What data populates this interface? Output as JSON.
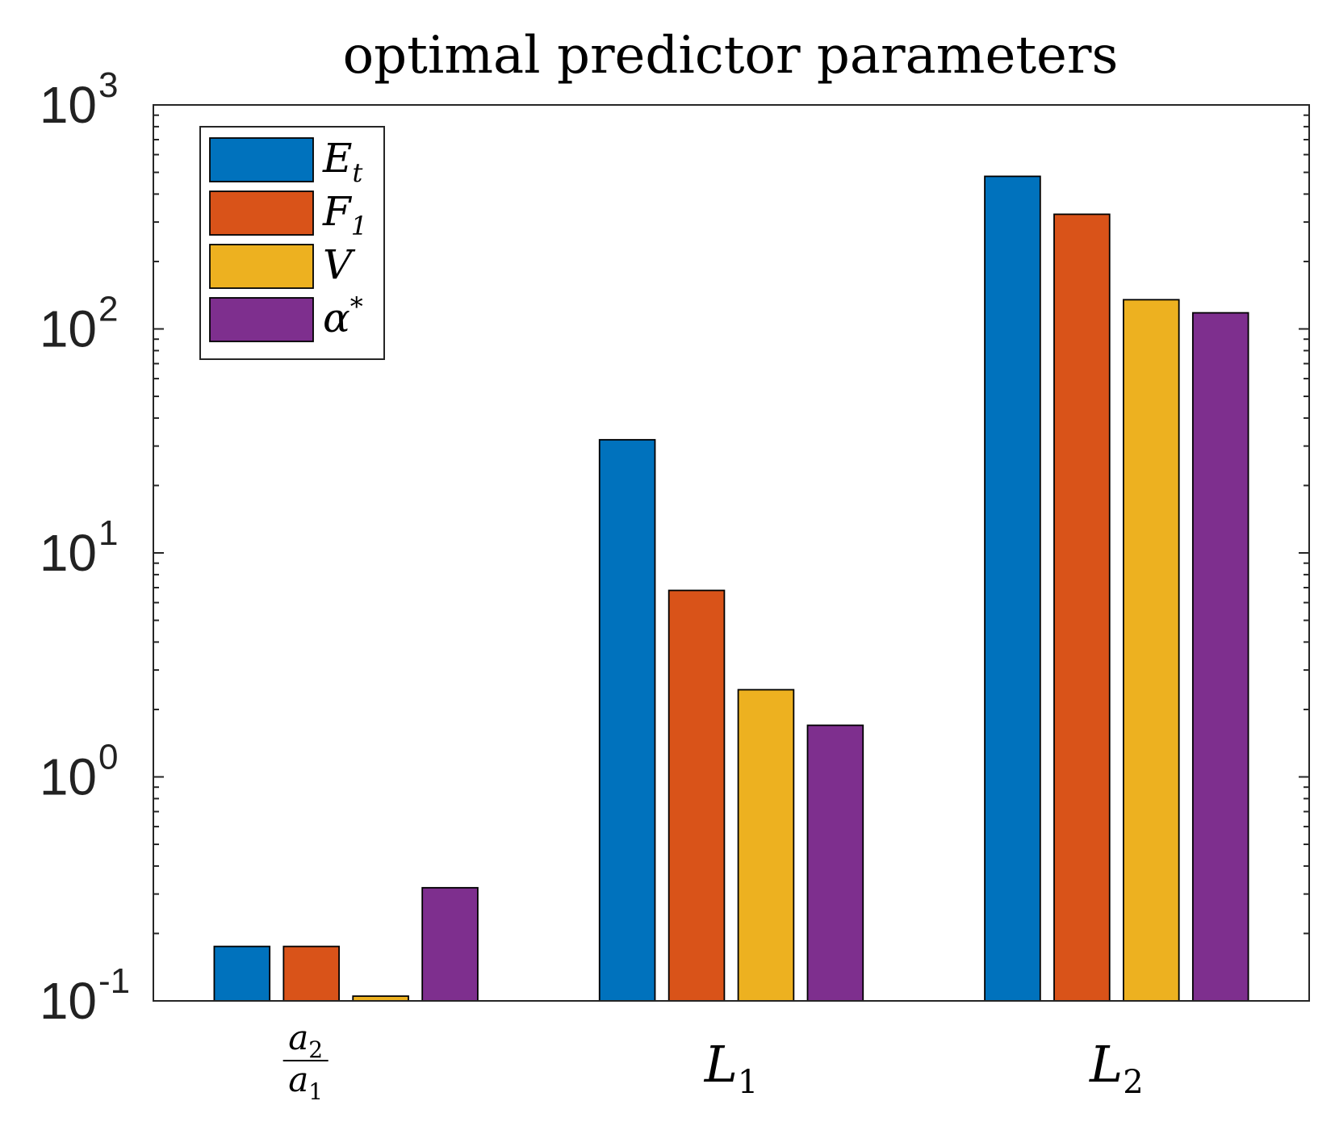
{
  "chart_data": {
    "type": "bar",
    "title": "optimal predictor parameters",
    "yscale": "log",
    "ylim": [
      0.1,
      1000
    ],
    "yticks": [
      {
        "base": "10",
        "exp": "-1"
      },
      {
        "base": "10",
        "exp": "0"
      },
      {
        "base": "10",
        "exp": "1"
      },
      {
        "base": "10",
        "exp": "2"
      },
      {
        "base": "10",
        "exp": "3"
      }
    ],
    "categories": [
      {
        "kind": "fraction",
        "num": "a",
        "num_sub": "2",
        "den": "a",
        "den_sub": "1"
      },
      {
        "kind": "symbol",
        "sym": "L",
        "sub": "1"
      },
      {
        "kind": "symbol",
        "sym": "L",
        "sub": "2"
      }
    ],
    "series": [
      {
        "name": "E",
        "sub": "t",
        "sup": "",
        "color": "#0072BD",
        "values": [
          0.175,
          32,
          480
        ]
      },
      {
        "name": "F",
        "sub": "1",
        "sup": "",
        "color": "#D95319",
        "values": [
          0.175,
          6.8,
          325
        ]
      },
      {
        "name": "V",
        "sub": "",
        "sup": "",
        "color": "#EDB120",
        "values": [
          0.105,
          2.45,
          135
        ]
      },
      {
        "name": "α",
        "sub": "",
        "sup": "*",
        "color": "#7E2F8E",
        "values": [
          0.32,
          1.7,
          118
        ]
      }
    ],
    "legend_position": "top-left",
    "grid": false
  }
}
